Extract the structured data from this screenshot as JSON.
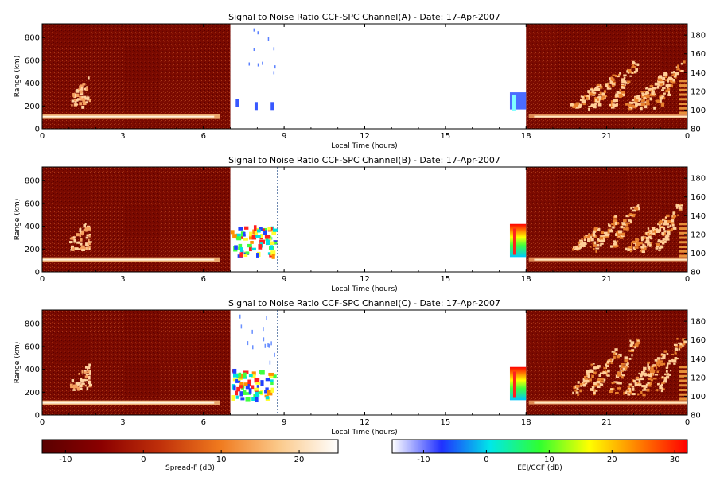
{
  "chart_data": {
    "type": "heatmap",
    "panels": [
      {
        "title": "Signal to Noise Ratio CCF-SPC Channel(A) - Date: 17-Apr-2007",
        "xlabel": "Local Time (hours)",
        "ylabel": "Range (km)",
        "xlim": [
          0,
          24
        ],
        "xticks": [
          "0",
          "3",
          "6",
          "9",
          "12",
          "15",
          "18",
          "21",
          "0"
        ],
        "ylim_left": [
          0,
          920
        ],
        "yticks_left": [
          "0",
          "200",
          "400",
          "600",
          "800"
        ],
        "ylim_right": [
          80,
          192
        ],
        "yticks_right": [
          "80",
          "100",
          "120",
          "140",
          "160",
          "180"
        ],
        "spreadf_time_ranges": [
          [
            0,
            7
          ],
          [
            18,
            24
          ]
        ],
        "eej_time_ranges": [
          [
            7,
            8.7
          ],
          [
            17.4,
            18
          ]
        ]
      },
      {
        "title": "Signal to Noise Ratio CCF-SPC Channel(B) - Date: 17-Apr-2007",
        "xlabel": "Local Time (hours)",
        "ylabel": "Range (km)",
        "xlim": [
          0,
          24
        ],
        "xticks": [
          "0",
          "3",
          "6",
          "9",
          "12",
          "15",
          "18",
          "21",
          "0"
        ],
        "ylim_left": [
          0,
          920
        ],
        "yticks_left": [
          "0",
          "200",
          "400",
          "600",
          "800"
        ],
        "ylim_right": [
          80,
          192
        ],
        "yticks_right": [
          "80",
          "100",
          "120",
          "140",
          "160",
          "180"
        ],
        "spreadf_time_ranges": [
          [
            0,
            7
          ],
          [
            18,
            24
          ]
        ],
        "eej_time_ranges": [
          [
            7,
            8.7
          ],
          [
            17.4,
            18
          ]
        ]
      },
      {
        "title": "Signal to Noise Ratio CCF-SPC Channel(C) - Date: 17-Apr-2007",
        "xlabel": "Local Time (hours)",
        "ylabel": "Range (km)",
        "xlim": [
          0,
          24
        ],
        "xticks": [
          "0",
          "3",
          "6",
          "9",
          "12",
          "15",
          "18",
          "21",
          "0"
        ],
        "ylim_left": [
          0,
          920
        ],
        "yticks_left": [
          "0",
          "200",
          "400",
          "600",
          "800"
        ],
        "ylim_right": [
          80,
          192
        ],
        "yticks_right": [
          "80",
          "100",
          "120",
          "140",
          "160",
          "180"
        ],
        "spreadf_time_ranges": [
          [
            0,
            7
          ],
          [
            18,
            24
          ]
        ],
        "eej_time_ranges": [
          [
            7,
            8.7
          ],
          [
            17.4,
            18
          ]
        ]
      }
    ],
    "colorbars": [
      {
        "label": "Spread-F (dB)",
        "range": [
          -13,
          25
        ],
        "ticks": [
          "-10",
          "0",
          "10",
          "20"
        ],
        "colors": [
          "#5a0000",
          "#8b0000",
          "#c0300a",
          "#f07a1e",
          "#fbc98a",
          "#ffffff"
        ]
      },
      {
        "label": "EEJ/CCF (dB)",
        "range": [
          -15,
          32
        ],
        "ticks": [
          "-10",
          "0",
          "10",
          "20",
          "30"
        ],
        "colors": [
          "#ffffff",
          "#2030ff",
          "#00e8e8",
          "#30ff30",
          "#ffff00",
          "#ff8000",
          "#ff0000"
        ]
      }
    ]
  }
}
